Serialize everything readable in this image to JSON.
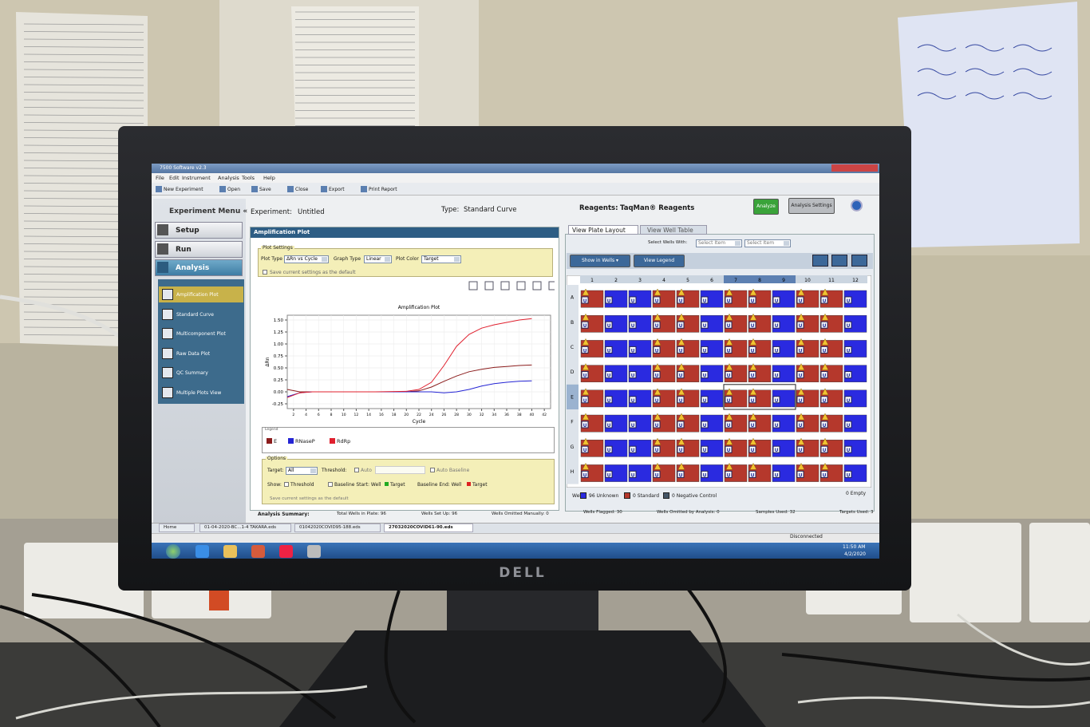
{
  "window": {
    "title": "7500 Software v2.3",
    "menu": [
      "File",
      "Edit",
      "Instrument",
      "Analysis",
      "Tools",
      "Help"
    ],
    "toolbar": [
      "New Experiment",
      "Open",
      "Save",
      "Close",
      "Export",
      "Print Report"
    ]
  },
  "sidebar": {
    "heading": "Experiment Menu «",
    "sections": [
      "Setup",
      "Run",
      "Analysis"
    ],
    "analysis_items": [
      "Amplification Plot",
      "Standard Curve",
      "Multicomponent Plot",
      "Raw Data Plot",
      "QC Summary",
      "Multiple Plots View"
    ]
  },
  "header": {
    "experiment_label": "Experiment:",
    "experiment": "Untitled",
    "type_label": "Type:",
    "type": "Standard Curve",
    "reagents_label": "Reagents:",
    "reagents": "TaqMan® Reagents",
    "analyze": "Analyze",
    "analysis_settings": "Analysis Settings"
  },
  "amplification_panel": {
    "title": "Amplification Plot",
    "plot_settings": {
      "label": "Plot Settings",
      "plot_type_label": "Plot Type",
      "plot_type": "ΔRn vs Cycle",
      "graph_type_label": "Graph Type",
      "graph_type": "Linear",
      "plot_color_label": "Plot Color",
      "plot_color": "Target",
      "save_default": "Save current settings as the default"
    },
    "options": {
      "label": "Options",
      "target_label": "Target:",
      "target": "All",
      "threshold_label": "Threshold:",
      "auto": "Auto",
      "auto_baseline": "Auto Baseline",
      "show_label": "Show:",
      "threshold": "Threshold",
      "baseline_start": "Baseline Start: Well",
      "start_target": "Target",
      "baseline_end": "Baseline End: Well",
      "end_target": "Target",
      "save_default": "Save current settings as the default"
    }
  },
  "chart_data": {
    "type": "line",
    "title": "Amplification Plot",
    "x_label": "Cycle",
    "y_label": "ΔRn",
    "legend_title": "Legend",
    "grid": true,
    "x": [
      1,
      3,
      5,
      10,
      15,
      20,
      22,
      24,
      26,
      28,
      30,
      32,
      34,
      36,
      38,
      40
    ],
    "series": [
      {
        "name": "E",
        "color": "#8b1c1c",
        "values": [
          0.05,
          0,
          0,
          0,
          0,
          0,
          0.02,
          0.1,
          0.22,
          0.33,
          0.42,
          0.47,
          0.51,
          0.53,
          0.55,
          0.56
        ]
      },
      {
        "name": "RNaseP",
        "color": "#2424d4",
        "values": [
          -0.1,
          -0.02,
          0,
          0,
          0,
          0,
          0,
          0,
          -0.02,
          0,
          0.05,
          0.12,
          0.17,
          0.2,
          0.22,
          0.23
        ]
      },
      {
        "name": "RdRp",
        "color": "#e0202e",
        "values": [
          -0.12,
          -0.02,
          0,
          0,
          0,
          0.01,
          0.05,
          0.2,
          0.55,
          0.95,
          1.2,
          1.33,
          1.4,
          1.45,
          1.5,
          1.53
        ]
      }
    ],
    "xlim": [
      1,
      43
    ],
    "xticks": [
      2,
      4,
      6,
      8,
      10,
      12,
      14,
      16,
      18,
      20,
      22,
      24,
      26,
      28,
      30,
      32,
      34,
      36,
      38,
      40,
      42
    ],
    "ylim": [
      -0.35,
      1.6
    ],
    "yticks": [
      {
        "value": -0.25,
        "label": "-0.25"
      },
      {
        "value": 0,
        "label": "0.00"
      },
      {
        "value": 0.25,
        "label": "0.25"
      },
      {
        "value": 0.5,
        "label": "0.50"
      },
      {
        "value": 0.75,
        "label": "0.75"
      },
      {
        "value": 1,
        "label": "1.00"
      },
      {
        "value": 1.25,
        "label": "1.25"
      },
      {
        "value": 1.5,
        "label": "1.50"
      }
    ]
  },
  "plate_panel": {
    "tabs": [
      "View Plate Layout",
      "View Well Table"
    ],
    "select_label": "Select Wells With:",
    "selects": [
      "Select Item",
      "Select Item"
    ],
    "show_in_wells": "Show in Wells ▾",
    "view_legend": "View Legend",
    "wells_label": "Wells:",
    "counts": [
      "96 Unknown",
      "0 Standard",
      "0 Negative Control"
    ],
    "empty": "0 Empty"
  },
  "plate": {
    "columns": [
      "1",
      "2",
      "3",
      "4",
      "5",
      "6",
      "7",
      "8",
      "9",
      "10",
      "11",
      "12"
    ],
    "rows": [
      "A",
      "B",
      "C",
      "D",
      "E",
      "F",
      "G",
      "H"
    ],
    "column_colors": [
      "#b5382c",
      "#2a2ae0",
      "#2a2ae0",
      "#b5382c",
      "#b5382c",
      "#2a2ae0",
      "#b5382c",
      "#b5382c",
      "#2a2ae0",
      "#b5382c",
      "#b5382c",
      "#2a2ae0"
    ],
    "unknown_mark": "U"
  },
  "summary": {
    "label": "Analysis Summary:",
    "items": [
      "Total Wells in Plate: 96",
      "Wells Set Up: 96",
      "Wells Omitted Manually: 0",
      "Wells Flagged: 30",
      "Wells Omitted by Analysis: 0",
      "Samples Used: 32",
      "Targets Used: 3"
    ]
  },
  "file_tabs": [
    "Home",
    "01-04-2020-BC...1-4 TAKARA.eds",
    "01042020COVID95-188.eds",
    "27032020COVID61-90.eds"
  ],
  "status": "Disconnected",
  "clock": {
    "time": "11:50 AM",
    "date": "4/2/2020"
  },
  "monitor_brand": "DELL"
}
